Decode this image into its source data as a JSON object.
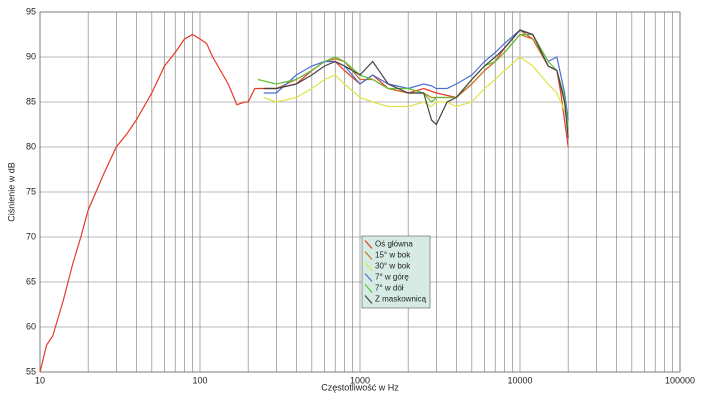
{
  "chart_data": {
    "type": "line",
    "xlabel": "Częstotliwość w Hz",
    "ylabel": "Ciśnienie w dB",
    "xscale": "log",
    "xlim": [
      10,
      100000
    ],
    "ylim": [
      55,
      95
    ],
    "xticks": [
      10,
      100,
      1000,
      10000,
      100000
    ],
    "xminor": [
      20,
      30,
      40,
      50,
      60,
      70,
      80,
      90,
      200,
      300,
      400,
      500,
      600,
      700,
      800,
      900,
      2000,
      3000,
      4000,
      5000,
      6000,
      7000,
      8000,
      9000,
      20000,
      30000,
      40000,
      50000,
      60000,
      70000,
      80000,
      90000
    ],
    "yticks": [
      55,
      60,
      65,
      70,
      75,
      80,
      85,
      90,
      95
    ],
    "grid": true,
    "legend": "center",
    "series": [
      {
        "name": "Oś główna",
        "color": "#e53a2c",
        "x": [
          10,
          11,
          12,
          14,
          16,
          18,
          20,
          25,
          30,
          35,
          40,
          50,
          60,
          70,
          80,
          90,
          100,
          110,
          120,
          150,
          170,
          190,
          200,
          220,
          250,
          300,
          400,
          500,
          600,
          700,
          800,
          1000,
          1200,
          1500,
          2000,
          2500,
          3000,
          4000,
          5000,
          6000,
          7000,
          8000,
          10000,
          12000,
          15000,
          17000,
          18000,
          20000
        ],
        "values": [
          55,
          58,
          59,
          63,
          67,
          70,
          73,
          77,
          80,
          81.5,
          83,
          86,
          89,
          90.5,
          92,
          92.5,
          92,
          91.5,
          90,
          87,
          84.7,
          85,
          85,
          86.5,
          86.5,
          86.5,
          87,
          88.5,
          89.5,
          89.5,
          88.5,
          87,
          88,
          86.5,
          86,
          86.5,
          86,
          85.5,
          87,
          88.5,
          89.5,
          91,
          93,
          92,
          89,
          88.5,
          86,
          80
        ]
      },
      {
        "name": "15° w bok",
        "color": "#c8741e",
        "x": [
          250,
          300,
          400,
          500,
          600,
          700,
          800,
          1000,
          1200,
          1500,
          2000,
          2500,
          2800,
          3000,
          3500,
          4000,
          5000,
          6000,
          7000,
          8000,
          10000,
          12000,
          15000,
          17000,
          19000,
          20000
        ],
        "values": [
          86.5,
          86.5,
          87.5,
          88.5,
          89.5,
          89.8,
          89.5,
          87.5,
          87.5,
          86.5,
          86,
          86,
          85.5,
          85.5,
          85.5,
          85.5,
          87,
          88.5,
          89.5,
          90.5,
          92.5,
          92,
          89,
          88.5,
          85,
          82
        ]
      },
      {
        "name": "30° w bok",
        "color": "#dfe34a",
        "x": [
          250,
          300,
          400,
          500,
          600,
          700,
          800,
          1000,
          1200,
          1500,
          2000,
          2500,
          2800,
          3000,
          3500,
          4000,
          5000,
          6000,
          7000,
          8000,
          10000,
          12000,
          15000,
          17000,
          19000,
          20000
        ],
        "values": [
          85.5,
          85,
          85.5,
          86.5,
          87.5,
          88,
          87,
          85.5,
          85,
          84.5,
          84.5,
          85,
          84.5,
          85,
          85,
          84.5,
          85,
          86.5,
          87.5,
          88.5,
          90,
          89,
          87,
          86,
          84,
          82.5
        ]
      },
      {
        "name": "7° w górę",
        "color": "#4a6fd4",
        "x": [
          250,
          300,
          400,
          500,
          600,
          700,
          800,
          1000,
          1200,
          1500,
          2000,
          2500,
          2800,
          3000,
          3500,
          4000,
          5000,
          6000,
          7000,
          8000,
          10000,
          12000,
          15000,
          17000,
          19000,
          20000
        ],
        "values": [
          86,
          86,
          88,
          89,
          89.5,
          89.5,
          89,
          87,
          88,
          87,
          86.5,
          87,
          86.8,
          86.5,
          86.5,
          87,
          88,
          89.5,
          90.5,
          91.5,
          93,
          92.5,
          89.5,
          90,
          86,
          83
        ]
      },
      {
        "name": "7° w dół",
        "color": "#62c036",
        "x": [
          230,
          300,
          400,
          500,
          600,
          700,
          800,
          1000,
          1200,
          1500,
          2000,
          2500,
          2800,
          3000,
          3500,
          4000,
          5000,
          6000,
          7000,
          8000,
          10000,
          12000,
          15000,
          17000,
          19000,
          20000
        ],
        "values": [
          87.5,
          87,
          87.5,
          88.5,
          89.5,
          90,
          89.5,
          88,
          87.5,
          86.5,
          86.5,
          86,
          85,
          85.5,
          85.5,
          85.5,
          87.5,
          89,
          89.5,
          90.5,
          92.5,
          92.5,
          89.5,
          88.5,
          85.5,
          82
        ]
      },
      {
        "name": "Z maskownicą",
        "color": "#444444",
        "x": [
          250,
          300,
          400,
          500,
          600,
          700,
          800,
          1000,
          1200,
          1500,
          2000,
          2500,
          2800,
          3000,
          3500,
          4000,
          5000,
          6000,
          7000,
          8000,
          10000,
          12000,
          15000,
          17000,
          19000,
          20000
        ],
        "values": [
          86.5,
          86.5,
          87,
          88,
          89,
          89.5,
          89,
          88,
          89.5,
          87,
          86,
          86,
          83,
          82.5,
          85,
          85.5,
          87.5,
          89,
          90,
          91,
          93,
          92.5,
          89,
          88.5,
          85,
          81
        ]
      }
    ]
  }
}
